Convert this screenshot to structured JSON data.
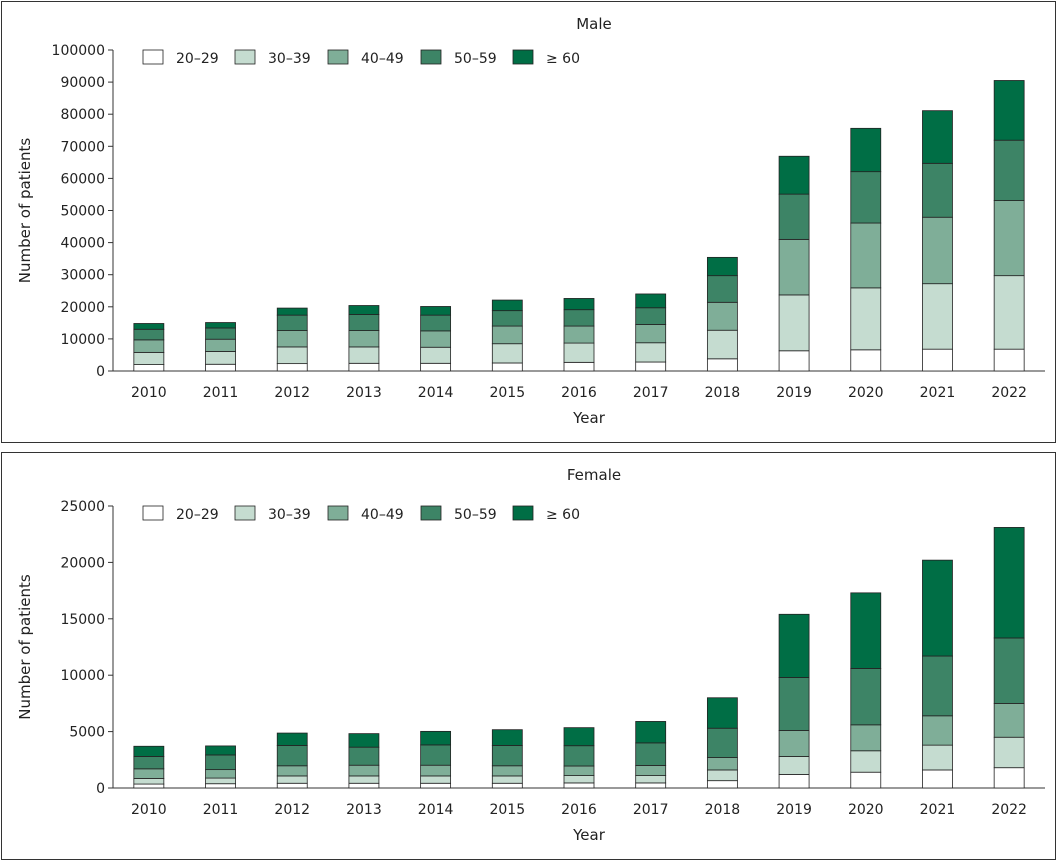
{
  "chart_data": [
    {
      "type": "bar",
      "stacked": true,
      "title": "Male",
      "xlabel": "Year",
      "ylabel": "Number of patients",
      "ylim": [
        0,
        100000
      ],
      "yticks": [
        0,
        10000,
        20000,
        30000,
        40000,
        50000,
        60000,
        70000,
        80000,
        90000,
        100000
      ],
      "grid": false,
      "legend_position": "top-left",
      "categories": [
        "2010",
        "2011",
        "2012",
        "2013",
        "2014",
        "2015",
        "2016",
        "2017",
        "2018",
        "2019",
        "2020",
        "2021",
        "2022"
      ],
      "series": [
        {
          "name": "20–29",
          "color": "#ffffff",
          "values": [
            2000,
            2100,
            2300,
            2400,
            2400,
            2500,
            2700,
            2800,
            3800,
            6300,
            6600,
            6800,
            6800
          ]
        },
        {
          "name": "30–39",
          "color": "#c5dcd0",
          "values": [
            3800,
            4000,
            5200,
            5100,
            5000,
            6000,
            6000,
            6000,
            8900,
            17400,
            19300,
            20400,
            22900
          ]
        },
        {
          "name": "40–49",
          "color": "#7fae98",
          "values": [
            3900,
            3800,
            5100,
            5100,
            5100,
            5500,
            5300,
            5700,
            8700,
            17300,
            20200,
            20700,
            23400
          ]
        },
        {
          "name": "50–59",
          "color": "#3d8466",
          "values": [
            3300,
            3500,
            4800,
            5000,
            4900,
            4800,
            5100,
            5200,
            8300,
            14100,
            16000,
            16800,
            18800
          ]
        },
        {
          "name": "≥ 60",
          "color": "#006e45",
          "values": [
            1800,
            1700,
            2200,
            2800,
            2700,
            3300,
            3500,
            4300,
            5700,
            11800,
            13500,
            16400,
            18600
          ]
        }
      ]
    },
    {
      "type": "bar",
      "stacked": true,
      "title": "Female",
      "xlabel": "Year",
      "ylabel": "Number of patients",
      "ylim": [
        0,
        25000
      ],
      "yticks": [
        0,
        5000,
        10000,
        15000,
        20000,
        25000
      ],
      "grid": false,
      "legend_position": "top-left",
      "categories": [
        "2010",
        "2011",
        "2012",
        "2013",
        "2014",
        "2015",
        "2016",
        "2017",
        "2018",
        "2019",
        "2020",
        "2021",
        "2022"
      ],
      "series": [
        {
          "name": "20–29",
          "color": "#ffffff",
          "values": [
            350,
            380,
            420,
            420,
            420,
            420,
            450,
            450,
            650,
            1200,
            1400,
            1600,
            1800
          ]
        },
        {
          "name": "30–39",
          "color": "#c5dcd0",
          "values": [
            500,
            500,
            650,
            650,
            650,
            650,
            650,
            650,
            950,
            1600,
            1900,
            2200,
            2700
          ]
        },
        {
          "name": "40–49",
          "color": "#7fae98",
          "values": [
            850,
            750,
            900,
            950,
            950,
            900,
            850,
            900,
            1100,
            2300,
            2300,
            2600,
            3000
          ]
        },
        {
          "name": "50–59",
          "color": "#3d8466",
          "values": [
            1100,
            1300,
            1800,
            1600,
            1800,
            1800,
            1800,
            2000,
            2600,
            4700,
            5000,
            5300,
            5800
          ]
        },
        {
          "name": "≥ 60",
          "color": "#006e45",
          "values": [
            900,
            800,
            1100,
            1200,
            1200,
            1400,
            1600,
            1900,
            2700,
            5600,
            6700,
            8500,
            9800
          ]
        }
      ]
    }
  ]
}
